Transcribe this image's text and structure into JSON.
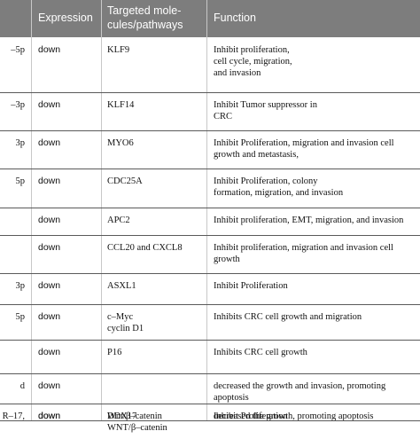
{
  "header": {
    "col_expression": "Expression",
    "col_targets_line1": "Targeted mole-",
    "col_targets_line2": "cules/pathways",
    "col_function": "Function"
  },
  "rows": [
    {
      "name": "–5p",
      "expression": "down",
      "targets": [
        "KLF9"
      ],
      "function": [
        "Inhibit proliferation,",
        "cell cycle, migration,",
        "and invasion"
      ]
    },
    {
      "name": "–3p",
      "expression": "down",
      "targets": [
        "KLF14"
      ],
      "function": [
        "Inhibit Tumor suppressor in",
        "CRC"
      ]
    },
    {
      "name": "3p",
      "expression": "down",
      "targets": [
        "MYO6"
      ],
      "function": [
        "Inhibit Proliferation, migration and invasion cell",
        "growth and metastasis,"
      ]
    },
    {
      "name": "5p",
      "expression": "down",
      "targets": [
        "CDC25A"
      ],
      "function": [
        "Inhibit Proliferation, colony",
        "formation, migration, and invasion"
      ]
    },
    {
      "name": "",
      "expression": "down",
      "targets": [
        "APC2"
      ],
      "function": [
        "Inhibit proliferation, EMT, migration, and invasion"
      ]
    },
    {
      "name": "",
      "expression": "down",
      "targets": [
        "CCL20 and CXCL8"
      ],
      "function": [
        "Inhibit proliferation, migration and invasion cell",
        "growth"
      ]
    },
    {
      "name": "3p",
      "expression": "down",
      "targets": [
        "ASXL1"
      ],
      "function": [
        "Inhibit Proliferation"
      ]
    },
    {
      "name": "5p",
      "expression": "down",
      "targets": [
        "c–Myc",
        "cyclin D1"
      ],
      "function": [
        "Inhibits CRC cell growth and migration"
      ]
    },
    {
      "name": "",
      "expression": "down",
      "targets": [
        "P16"
      ],
      "function": [
        "Inhibits CRC cell growth"
      ]
    },
    {
      "name": "d",
      "expression": "down",
      "targets": [
        ""
      ],
      "function": [
        "decreased the growth and invasion, promoting",
        "apoptosis"
      ]
    },
    {
      "name": "",
      "expression": "down",
      "targets": [
        "Wnt/β–catenin"
      ],
      "function": [
        "decreased the growth, promoting apoptosis"
      ]
    },
    {
      "name": "R–17,",
      "expression": "down",
      "targets": [
        "DDX17",
        "WNT/β–catenin"
      ],
      "function": [
        "Inhibit Proliferation"
      ]
    }
  ]
}
